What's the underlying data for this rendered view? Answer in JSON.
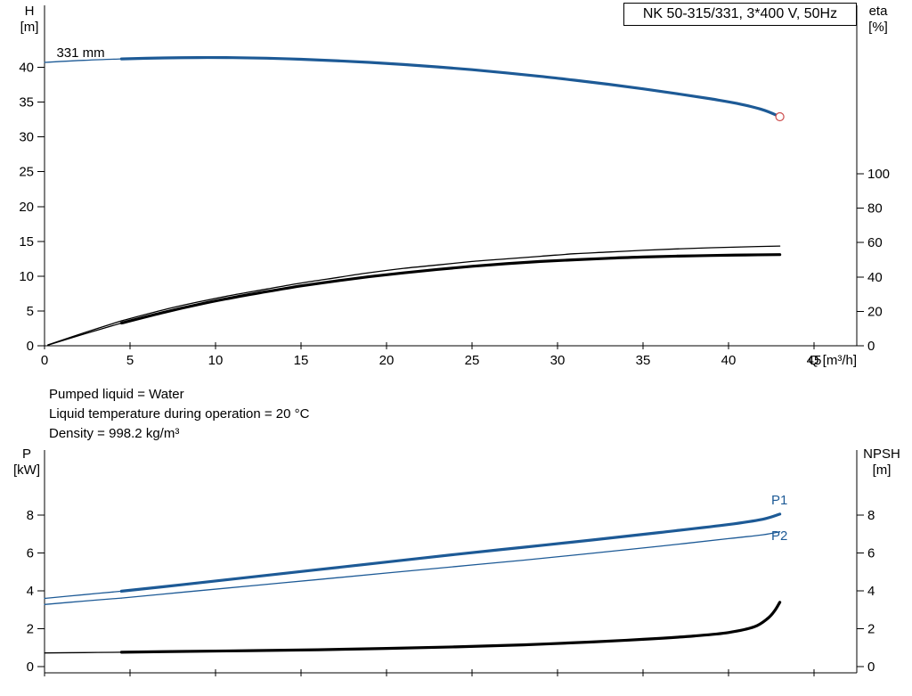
{
  "title_box": {
    "label": "NK 50-315/331, 3*400 V, 50Hz"
  },
  "info": {
    "line1": "Pumped liquid = Water",
    "line2": "Liquid temperature during operation = 20 °C",
    "line3": "Density = 998.2 kg/m³"
  },
  "axis_corner_labels": {
    "h": "H\n[m]",
    "eta": "eta\n[%]",
    "p": "P\n[kW]",
    "npsh": "NPSH\n[m]"
  },
  "colors": {
    "curve_blue": "#1d5a96",
    "curve_black": "#000000",
    "marker_red": "#cc4b4b",
    "axis": "#000000"
  },
  "chart_data": [
    {
      "name": "hq-eta-chart",
      "type": "line",
      "x_axis": {
        "label": "Q [m³/h]",
        "min": 0,
        "max": 47.5,
        "ticks": [
          0,
          5,
          10,
          15,
          20,
          25,
          30,
          35,
          40,
          45
        ]
      },
      "y_left": {
        "label": "H [m]",
        "min": 0,
        "max": 48.9,
        "ticks": [
          0,
          5,
          10,
          15,
          20,
          25,
          30,
          35,
          40
        ]
      },
      "y_right": {
        "label": "eta [%]",
        "min": 0,
        "max": 100,
        "ticks": [
          0,
          20,
          40,
          60,
          80,
          100
        ]
      },
      "annotations": [
        {
          "text": "331 mm",
          "x": 0.7,
          "y": 41.5,
          "color": "black",
          "anchor": "start"
        }
      ],
      "series": [
        {
          "name": "head-331mm-lead",
          "axis": "left",
          "style": "blue-thin",
          "points": [
            [
              0,
              40.7
            ],
            [
              2.3,
              41.0
            ],
            [
              4.5,
              41.2
            ]
          ]
        },
        {
          "name": "head-331mm",
          "axis": "left",
          "style": "blue-thick",
          "marker_end": "red-circle",
          "points": [
            [
              4.5,
              41.2
            ],
            [
              7,
              41.35
            ],
            [
              9,
              41.4
            ],
            [
              11,
              41.38
            ],
            [
              13,
              41.3
            ],
            [
              15,
              41.15
            ],
            [
              17,
              40.95
            ],
            [
              19,
              40.7
            ],
            [
              21,
              40.4
            ],
            [
              23,
              40.05
            ],
            [
              25,
              39.65
            ],
            [
              27,
              39.2
            ],
            [
              29,
              38.7
            ],
            [
              31,
              38.15
            ],
            [
              33,
              37.55
            ],
            [
              35,
              36.9
            ],
            [
              37,
              36.2
            ],
            [
              39,
              35.45
            ],
            [
              40.5,
              34.8
            ],
            [
              42,
              33.9
            ],
            [
              43,
              32.9
            ]
          ]
        },
        {
          "name": "eta-pump-lead",
          "axis": "right",
          "style": "black-thin",
          "points": [
            [
              0.2,
              0.5
            ],
            [
              2.3,
              7.5
            ],
            [
              4.5,
              14.5
            ]
          ]
        },
        {
          "name": "eta-pump",
          "axis": "right",
          "style": "black-thin",
          "points": [
            [
              4.5,
              14.5
            ],
            [
              7,
              21
            ],
            [
              9,
              25.5
            ],
            [
              11,
              29.5
            ],
            [
              13,
              33
            ],
            [
              15,
              36.5
            ],
            [
              17,
              39.5
            ],
            [
              19,
              42.5
            ],
            [
              21,
              45
            ],
            [
              23,
              47
            ],
            [
              25,
              49
            ],
            [
              27,
              50.5
            ],
            [
              29,
              52
            ],
            [
              31,
              53.5
            ],
            [
              33,
              54.5
            ],
            [
              35,
              55.5
            ],
            [
              37,
              56.3
            ],
            [
              39,
              57
            ],
            [
              41,
              57.5
            ],
            [
              43,
              58
            ]
          ]
        },
        {
          "name": "eta-pump-motor-lead",
          "axis": "right",
          "style": "black-thin",
          "points": [
            [
              0.2,
              0.4
            ],
            [
              2.3,
              6.8
            ],
            [
              4.5,
              13.2
            ]
          ]
        },
        {
          "name": "eta-pump-motor",
          "axis": "right",
          "style": "black-thick",
          "points": [
            [
              4.5,
              13.2
            ],
            [
              7,
              19.5
            ],
            [
              9,
              24
            ],
            [
              11,
              28
            ],
            [
              13,
              31.5
            ],
            [
              15,
              34.8
            ],
            [
              17,
              37.6
            ],
            [
              19,
              40.2
            ],
            [
              21,
              42.4
            ],
            [
              23,
              44.4
            ],
            [
              25,
              46.2
            ],
            [
              27,
              47.7
            ],
            [
              29,
              49
            ],
            [
              31,
              50
            ],
            [
              33,
              50.9
            ],
            [
              35,
              51.6
            ],
            [
              37,
              52.1
            ],
            [
              39,
              52.5
            ],
            [
              41,
              52.8
            ],
            [
              43,
              53
            ]
          ]
        }
      ]
    },
    {
      "name": "pq-npsh-chart",
      "type": "line",
      "x_axis": {
        "label": "",
        "min": 0,
        "max": 47.5,
        "ticks": [
          0,
          5,
          10,
          15,
          20,
          25,
          30,
          35,
          40,
          45
        ]
      },
      "y_left": {
        "label": "P [kW]",
        "min": 0,
        "max": 11.4,
        "ticks": [
          0,
          2,
          4,
          6,
          8
        ]
      },
      "y_right": {
        "label": "NPSH [m]",
        "min": 0,
        "max": 11.4,
        "ticks": [
          0,
          2,
          4,
          6,
          8
        ]
      },
      "annotations": [
        {
          "text": "P1",
          "x": 42.5,
          "y": 8.56,
          "color": "blue",
          "anchor": "start"
        },
        {
          "text": "P2",
          "x": 42.5,
          "y": 6.68,
          "color": "blue",
          "anchor": "start"
        }
      ],
      "series": [
        {
          "name": "p1-lead",
          "axis": "left",
          "style": "blue-thin",
          "points": [
            [
              0,
              3.6
            ],
            [
              2.3,
              3.8
            ],
            [
              4.5,
              3.98
            ]
          ]
        },
        {
          "name": "p1",
          "axis": "left",
          "style": "blue-thick",
          "points": [
            [
              4.5,
              3.98
            ],
            [
              8,
              4.32
            ],
            [
              12,
              4.72
            ],
            [
              16,
              5.12
            ],
            [
              20,
              5.52
            ],
            [
              24,
              5.92
            ],
            [
              28,
              6.3
            ],
            [
              32,
              6.68
            ],
            [
              36,
              7.08
            ],
            [
              40,
              7.5
            ],
            [
              42,
              7.78
            ],
            [
              43,
              8.05
            ]
          ]
        },
        {
          "name": "p2-lead",
          "axis": "left",
          "style": "blue-thin",
          "points": [
            [
              0,
              3.28
            ],
            [
              2.3,
              3.46
            ],
            [
              4.5,
              3.62
            ]
          ]
        },
        {
          "name": "p2",
          "axis": "left",
          "style": "blue-thin",
          "points": [
            [
              4.5,
              3.62
            ],
            [
              8,
              3.92
            ],
            [
              12,
              4.26
            ],
            [
              16,
              4.6
            ],
            [
              20,
              4.94
            ],
            [
              24,
              5.28
            ],
            [
              28,
              5.62
            ],
            [
              32,
              5.98
            ],
            [
              36,
              6.36
            ],
            [
              40,
              6.76
            ],
            [
              42,
              6.96
            ],
            [
              43,
              7.12
            ]
          ]
        },
        {
          "name": "npsh-lead",
          "axis": "right",
          "style": "black-thin",
          "points": [
            [
              0,
              0.72
            ],
            [
              2.3,
              0.74
            ],
            [
              4.5,
              0.76
            ]
          ]
        },
        {
          "name": "npsh",
          "axis": "right",
          "style": "black-thick",
          "points": [
            [
              4.5,
              0.76
            ],
            [
              8,
              0.8
            ],
            [
              12,
              0.84
            ],
            [
              16,
              0.89
            ],
            [
              20,
              0.96
            ],
            [
              24,
              1.04
            ],
            [
              28,
              1.15
            ],
            [
              32,
              1.3
            ],
            [
              35,
              1.44
            ],
            [
              38,
              1.62
            ],
            [
              40,
              1.8
            ],
            [
              41.5,
              2.1
            ],
            [
              42.3,
              2.55
            ],
            [
              42.7,
              2.95
            ],
            [
              43,
              3.4
            ]
          ]
        }
      ]
    }
  ]
}
